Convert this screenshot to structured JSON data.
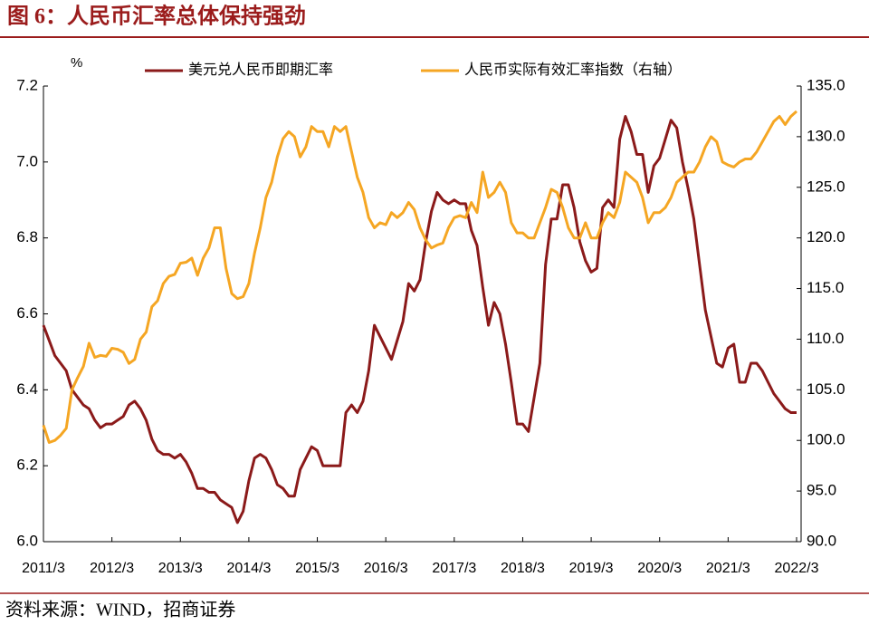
{
  "chart_data": {
    "type": "line",
    "title": "图 6：人民币汇率总体保持强劲",
    "y_unit": "%",
    "source": "资料来源：WIND，招商证券",
    "categories": [
      "2011/3",
      null,
      null,
      null,
      null,
      null,
      null,
      null,
      null,
      null,
      null,
      null,
      "2012/3",
      null,
      null,
      null,
      null,
      null,
      null,
      null,
      null,
      null,
      null,
      null,
      "2013/3",
      null,
      null,
      null,
      null,
      null,
      null,
      null,
      null,
      null,
      null,
      null,
      "2014/3",
      null,
      null,
      null,
      null,
      null,
      null,
      null,
      null,
      null,
      null,
      null,
      "2015/3",
      null,
      null,
      null,
      null,
      null,
      null,
      null,
      null,
      null,
      null,
      null,
      "2016/3",
      null,
      null,
      null,
      null,
      null,
      null,
      null,
      null,
      null,
      null,
      null,
      "2017/3",
      null,
      null,
      null,
      null,
      null,
      null,
      null,
      null,
      null,
      null,
      null,
      "2018/3",
      null,
      null,
      null,
      null,
      null,
      null,
      null,
      null,
      null,
      null,
      null,
      "2019/3",
      null,
      null,
      null,
      null,
      null,
      null,
      null,
      null,
      null,
      null,
      null,
      "2020/3",
      null,
      null,
      null,
      null,
      null,
      null,
      null,
      null,
      null,
      null,
      null,
      "2021/3",
      null,
      null,
      null,
      null,
      null,
      null,
      null,
      null,
      null,
      null,
      null,
      "2022/3"
    ],
    "series": [
      {
        "name": "美元兑人民币即期汇率",
        "color": "#8b1a1a",
        "axis": "y",
        "values": [
          6.57,
          6.53,
          6.49,
          6.47,
          6.45,
          6.4,
          6.38,
          6.36,
          6.35,
          6.32,
          6.3,
          6.31,
          6.31,
          6.32,
          6.33,
          6.36,
          6.37,
          6.35,
          6.32,
          6.27,
          6.24,
          6.23,
          6.23,
          6.22,
          6.23,
          6.21,
          6.18,
          6.14,
          6.14,
          6.13,
          6.13,
          6.11,
          6.1,
          6.09,
          6.05,
          6.08,
          6.16,
          6.22,
          6.23,
          6.22,
          6.19,
          6.15,
          6.14,
          6.12,
          6.12,
          6.19,
          6.22,
          6.25,
          6.24,
          6.2,
          6.2,
          6.2,
          6.2,
          6.34,
          6.36,
          6.34,
          6.37,
          6.45,
          6.57,
          6.54,
          6.51,
          6.48,
          6.53,
          6.58,
          6.68,
          6.66,
          6.69,
          6.79,
          6.87,
          6.92,
          6.9,
          6.89,
          6.9,
          6.89,
          6.89,
          6.82,
          6.78,
          6.67,
          6.57,
          6.63,
          6.6,
          6.52,
          6.42,
          6.31,
          6.31,
          6.29,
          6.38,
          6.47,
          6.73,
          6.85,
          6.85,
          6.94,
          6.94,
          6.88,
          6.79,
          6.74,
          6.71,
          6.72,
          6.88,
          6.9,
          6.88,
          7.06,
          7.12,
          7.08,
          7.02,
          7.02,
          6.92,
          6.99,
          7.01,
          7.06,
          7.11,
          7.09,
          7.0,
          6.93,
          6.85,
          6.73,
          6.61,
          6.54,
          6.47,
          6.46,
          6.51,
          6.52,
          6.42,
          6.42,
          6.47,
          6.47,
          6.45,
          6.42,
          6.39,
          6.37,
          6.35,
          6.34,
          6.34
        ]
      },
      {
        "name": "人民币实际有效汇率指数（右轴）",
        "color": "#f5a623",
        "axis": "y2",
        "values": [
          101.5,
          99.8,
          100.0,
          100.5,
          101.2,
          105.0,
          106.2,
          107.3,
          109.6,
          108.2,
          108.4,
          108.3,
          109.1,
          109.0,
          108.7,
          107.6,
          108.0,
          110.0,
          110.7,
          113.2,
          113.8,
          115.5,
          116.2,
          116.4,
          117.5,
          117.6,
          118.0,
          116.3,
          118.0,
          119.0,
          121.0,
          121.0,
          117.0,
          114.5,
          114.0,
          114.2,
          115.5,
          118.5,
          121.0,
          124.0,
          125.5,
          128.0,
          129.8,
          130.5,
          130.0,
          128.0,
          129.0,
          131.0,
          130.5,
          130.5,
          129.0,
          131.0,
          130.5,
          131.0,
          128.5,
          126.0,
          124.5,
          122.0,
          121.0,
          121.5,
          121.3,
          122.5,
          122.0,
          122.5,
          123.5,
          122.8,
          121.0,
          119.8,
          119.0,
          119.3,
          119.5,
          121.0,
          122.0,
          122.2,
          122.0,
          123.5,
          122.5,
          126.5,
          124.0,
          124.5,
          125.5,
          124.5,
          121.5,
          120.5,
          120.5,
          120.0,
          120.0,
          121.5,
          123.0,
          124.8,
          124.5,
          123.0,
          121.0,
          120.0,
          120.0,
          121.5,
          120.0,
          120.0,
          121.5,
          122.5,
          122.0,
          123.5,
          126.5,
          126.0,
          125.5,
          124.0,
          121.5,
          122.5,
          122.5,
          123.0,
          124.0,
          125.5,
          126.0,
          126.5,
          126.5,
          127.5,
          129.0,
          130.0,
          129.5,
          127.5,
          127.2,
          127.0,
          127.5,
          127.8,
          127.8,
          128.5,
          129.5,
          130.5,
          131.5,
          132.0,
          131.2,
          132.0,
          132.5
        ]
      }
    ],
    "ylim": [
      6.0,
      7.2
    ],
    "yticks": [
      {
        "value": 6.0,
        "label": "6.0"
      },
      6.2,
      6.4,
      6.6,
      6.8,
      {
        "value": 7.0,
        "label": "7.0"
      },
      7.2
    ],
    "y2lim": [
      90,
      135
    ],
    "y2ticks": [
      {
        "value": 90,
        "label": "90.0"
      },
      {
        "value": 95,
        "label": "95.0"
      },
      {
        "value": 100,
        "label": "100.0"
      },
      {
        "value": 105,
        "label": "105.0"
      },
      {
        "value": 110,
        "label": "110.0"
      },
      {
        "value": 115,
        "label": "115.0"
      },
      {
        "value": 120,
        "label": "120.0"
      },
      {
        "value": 125,
        "label": "125.0"
      },
      {
        "value": 130,
        "label": "130.0"
      },
      {
        "value": 135,
        "label": "135.0"
      }
    ],
    "legend": "top",
    "grid": false
  }
}
